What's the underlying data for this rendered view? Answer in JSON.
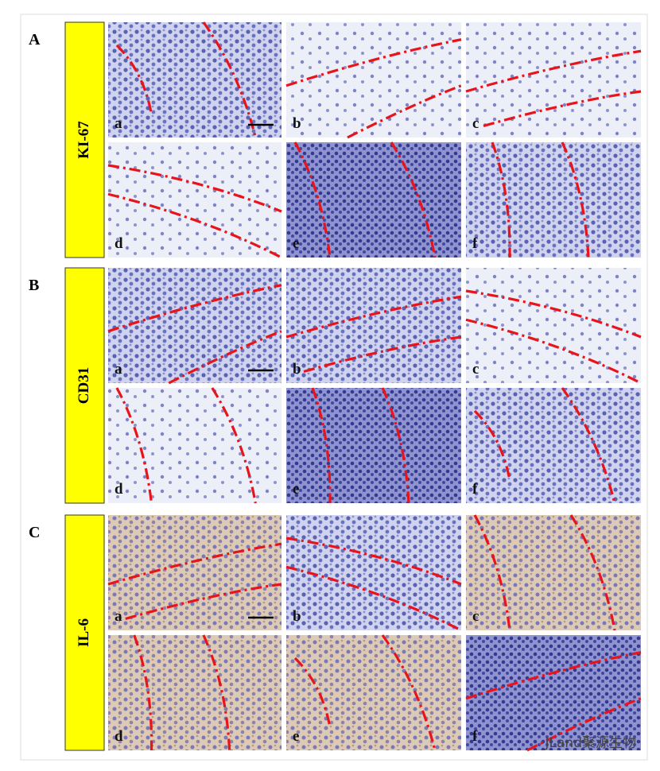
{
  "sections": [
    {
      "letter": "A",
      "marker": "KI-67",
      "panels": [
        "a",
        "b",
        "c",
        "d",
        "e",
        "f"
      ]
    },
    {
      "letter": "B",
      "marker": "CD31",
      "panels": [
        "a",
        "b",
        "c",
        "d",
        "e",
        "f"
      ]
    },
    {
      "letter": "C",
      "marker": "IL-6",
      "panels": [
        "a",
        "b",
        "c",
        "d",
        "e",
        "f"
      ]
    }
  ],
  "watermark": "JLand聚源生物"
}
